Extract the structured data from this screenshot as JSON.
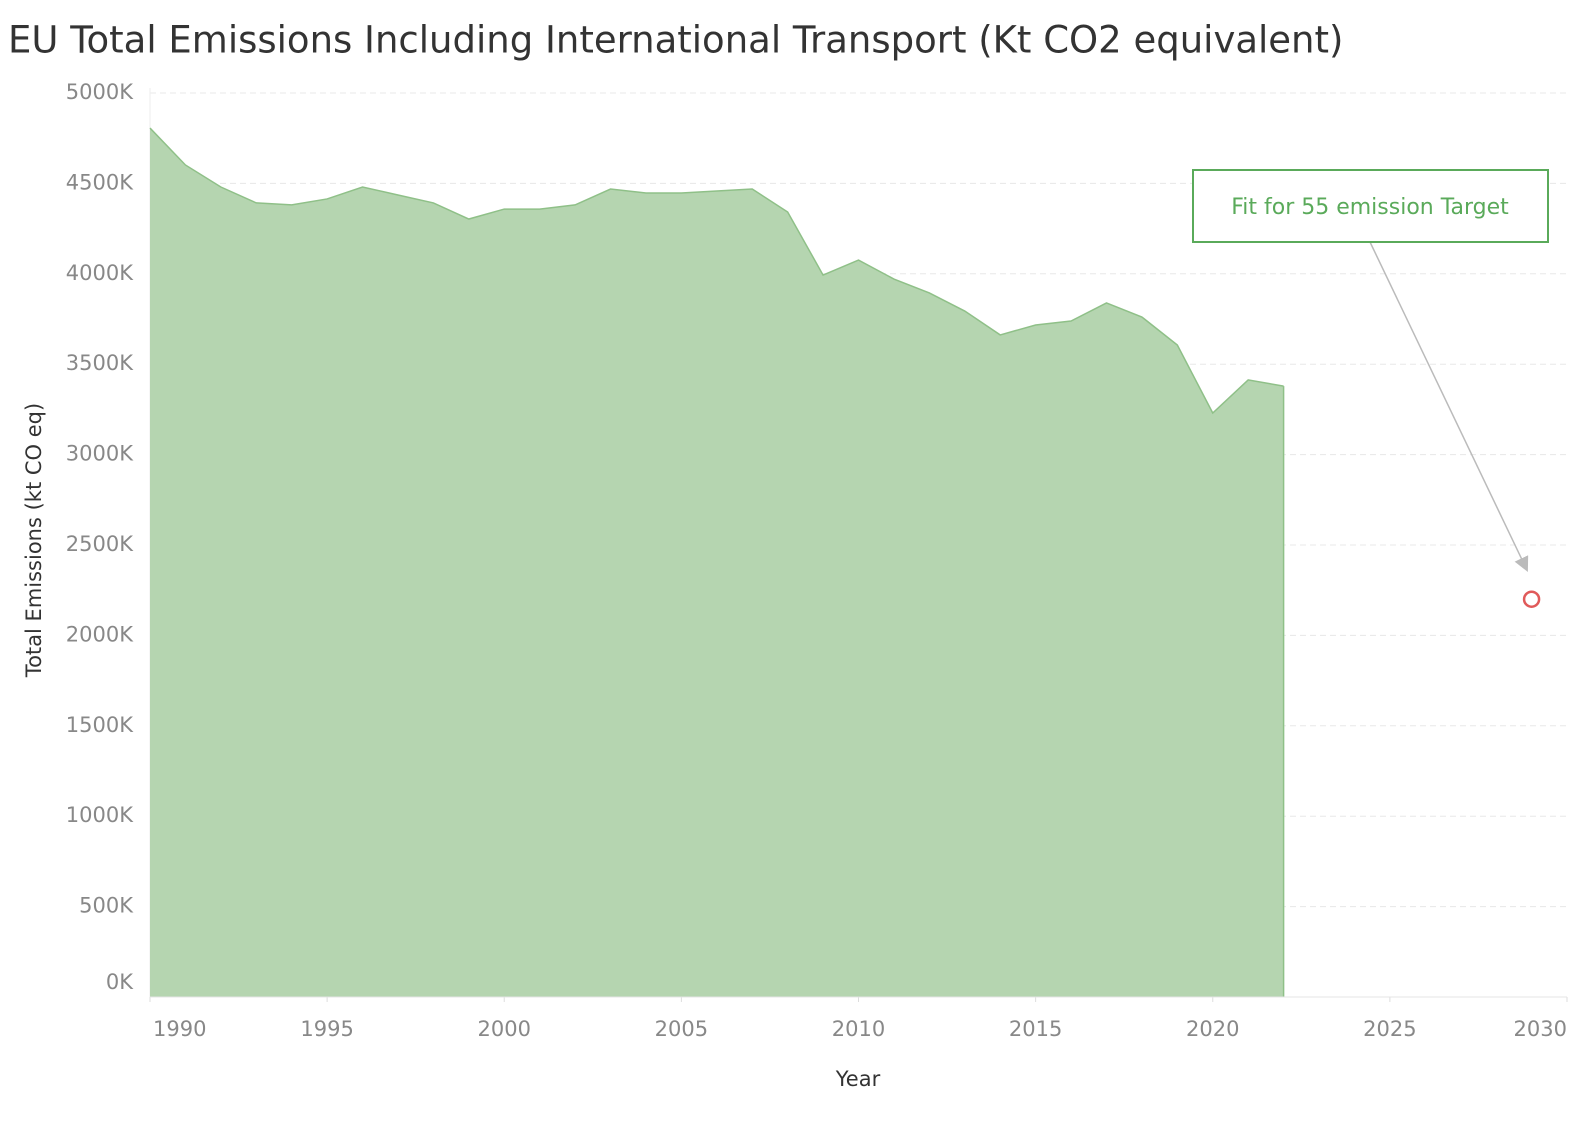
{
  "chart_data": {
    "type": "area",
    "title": "EU Total Emissions Including International Transport (Kt CO2 equivalent)",
    "x_label": "Year",
    "y_label": "Total Emissions (kt CO eq)",
    "x": [
      1990,
      1991,
      1992,
      1993,
      1994,
      1995,
      1996,
      1997,
      1998,
      1999,
      2000,
      2001,
      2002,
      2003,
      2004,
      2005,
      2006,
      2007,
      2008,
      2009,
      2010,
      2011,
      2012,
      2013,
      2014,
      2015,
      2016,
      2017,
      2018,
      2019,
      2020,
      2021,
      2022
    ],
    "values": [
      4806000,
      4602000,
      4480000,
      4392000,
      4381000,
      4414000,
      4480000,
      4436000,
      4392000,
      4303000,
      4358000,
      4358000,
      4381000,
      4469000,
      4447000,
      4447000,
      4458000,
      4469000,
      4342000,
      3993000,
      4076000,
      3971000,
      3894000,
      3794000,
      3662000,
      3717000,
      3739000,
      3839000,
      3761000,
      3606000,
      3230000,
      3413000,
      3379000
    ],
    "color": "#b5d5b0",
    "line_color": "#8fc088",
    "target": {
      "x": 2029,
      "value": 2200000,
      "color": "#e05a5a"
    },
    "annotation": "Fit for 55 emission Target",
    "annotation_color": "#5aaa5a",
    "xlim": [
      1990,
      2030
    ],
    "xticks": [
      1990,
      1995,
      2000,
      2005,
      2010,
      2015,
      2020,
      2025,
      2030
    ],
    "ylim": [
      0,
      5000000
    ],
    "yticks": [
      {
        "value": 0,
        "label": "0K"
      },
      {
        "value": 500000,
        "label": "500K"
      },
      {
        "value": 1000000,
        "label": "1000K"
      },
      {
        "value": 1500000,
        "label": "1500K"
      },
      {
        "value": 2000000,
        "label": "2000K"
      },
      {
        "value": 2500000,
        "label": "2500K"
      },
      {
        "value": 3000000,
        "label": "3000K"
      },
      {
        "value": 3500000,
        "label": "3500K"
      },
      {
        "value": 4000000,
        "label": "4000K"
      },
      {
        "value": 4500000,
        "label": "4500K"
      },
      {
        "value": 5000000,
        "label": "5000K"
      }
    ],
    "grid": true
  }
}
